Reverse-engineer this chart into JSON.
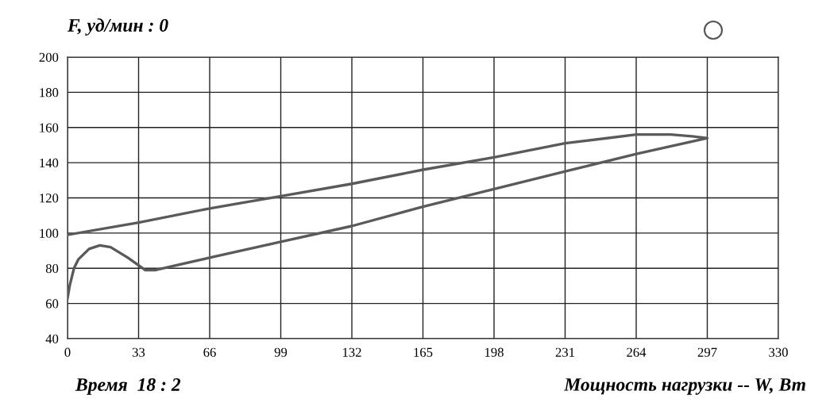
{
  "chart_data": {
    "type": "line",
    "title": "F, уд/мин : 0",
    "xlabel": "Мощность нагрузки -- W, Вт",
    "annotations": [
      "Время  18 : 2"
    ],
    "series": [
      {
        "color": "#5a5a5a",
        "x": [
          0,
          1,
          3,
          5,
          10,
          15,
          20,
          28,
          36,
          41,
          66,
          99,
          132,
          165,
          198,
          231,
          264,
          297,
          290,
          280,
          264,
          231,
          198,
          165,
          132,
          99,
          66,
          33,
          0
        ],
        "values": [
          63,
          70,
          80,
          85,
          91,
          93,
          92,
          86,
          79,
          79,
          86,
          95,
          104,
          115,
          125,
          135,
          145,
          154,
          155,
          156,
          156,
          151,
          143,
          136,
          128,
          121,
          114,
          106,
          99
        ]
      }
    ],
    "xlim": [
      0,
      330
    ],
    "xticks": [
      0,
      33,
      66,
      99,
      132,
      165,
      198,
      231,
      264,
      297,
      330
    ],
    "ylim": [
      40,
      200
    ],
    "yticks": [
      40,
      60,
      80,
      100,
      120,
      140,
      160,
      180,
      200
    ],
    "grid": true,
    "marker": "none",
    "line_style": "solid"
  }
}
